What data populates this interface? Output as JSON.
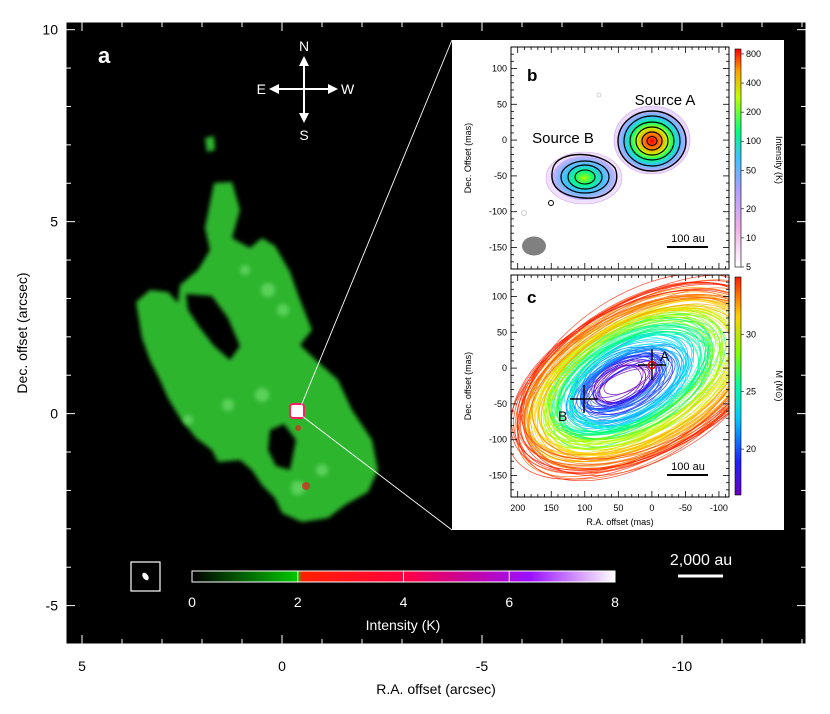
{
  "chart_data": [
    {
      "type": "heatmap",
      "panel_label": "a",
      "xlabel": "R.A. offset (arcsec)",
      "ylabel": "Dec. offset (arcsec)",
      "xlim": [
        5.4,
        -13.1
      ],
      "ylim": [
        -6,
        10.2
      ],
      "xticks": [
        5,
        0,
        -5,
        -10
      ],
      "xtick_labels": [
        "5",
        "0",
        "-5",
        "-10"
      ],
      "yticks": [
        -5,
        0,
        5,
        10
      ],
      "ytick_labels": [
        "-5",
        "0",
        "5",
        "10"
      ],
      "compass": {
        "N": "N",
        "S": "S",
        "E": "E",
        "W": "W"
      },
      "scalebar": "2,000 au",
      "colorbar": {
        "label": "Intensity (K)",
        "ticks": [
          0,
          2,
          4,
          6,
          8
        ],
        "tick_labels": [
          "0",
          "2",
          "4",
          "6",
          "8"
        ],
        "colors": [
          "#000000",
          "#00c800",
          "#ff0000",
          "#d0008a",
          "#8a1aff",
          "#ffffff"
        ]
      },
      "background_color": "#000000",
      "emission_color": "#2fb52f",
      "zoom_center": [
        0,
        0
      ]
    },
    {
      "type": "heatmap",
      "panel_label": "b",
      "xlabel": "",
      "ylabel": "Dec. Offset (mas)",
      "xlim": [
        210,
        -115
      ],
      "ylim": [
        -180,
        130
      ],
      "xticks": [
        200,
        150,
        100,
        50,
        0,
        -50,
        -100
      ],
      "yticks": [
        100,
        50,
        0,
        -50,
        -100,
        -150
      ],
      "ytick_labels": [
        "100",
        "50",
        "0",
        "-50",
        "-100",
        "-150"
      ],
      "sources": [
        {
          "name": "Source A",
          "x": 0,
          "y": 0,
          "peak_K": 800
        },
        {
          "name": "Source B",
          "x": 93,
          "y": -52,
          "peak_K": 200
        }
      ],
      "scalebar": "100 au",
      "colorbar": {
        "label": "Intensity (K)",
        "ticks": [
          5,
          10,
          20,
          50,
          100,
          200,
          400,
          800
        ],
        "tick_labels": [
          "5",
          "10",
          "20",
          "50",
          "100",
          "200",
          "400",
          "800"
        ],
        "scale": "log"
      }
    },
    {
      "type": "line",
      "panel_label": "c",
      "xlabel": "R.A. offset (mas)",
      "ylabel": "Dec. offset (mas)",
      "xlim": [
        210,
        -115
      ],
      "ylim": [
        -180,
        130
      ],
      "xticks": [
        200,
        150,
        100,
        50,
        0,
        -50,
        -100
      ],
      "xtick_labels": [
        "200",
        "150",
        "100",
        "50",
        "0",
        "-50",
        "-100"
      ],
      "yticks": [
        100,
        50,
        0,
        -50,
        -100,
        -150
      ],
      "ytick_labels": [
        "100",
        "50",
        "0",
        "-50",
        "-100",
        "-150"
      ],
      "markers": [
        {
          "name": "A",
          "x": 0,
          "y": 0
        },
        {
          "name": "B",
          "x": 93,
          "y": -47
        }
      ],
      "scalebar": "100 au",
      "colorbar": {
        "label": "M (M⊙)",
        "ticks": [
          20,
          25,
          30
        ],
        "tick_labels": [
          "20",
          "25",
          "30"
        ],
        "range": [
          16,
          35
        ]
      }
    }
  ]
}
